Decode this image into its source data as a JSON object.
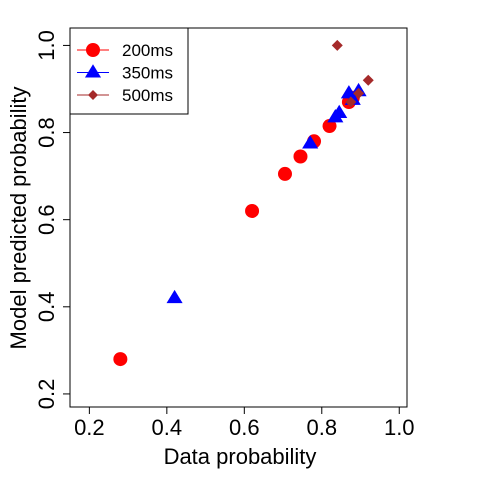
{
  "chart_data": {
    "type": "scatter",
    "title": "",
    "xlabel": "Data probability",
    "ylabel": "Model predicted probability",
    "xlim": [
      0.15,
      1.02
    ],
    "ylim": [
      0.17,
      1.04
    ],
    "xticks": [
      0.2,
      0.4,
      0.6,
      0.8,
      1.0
    ],
    "xtick_labels": [
      "0.2",
      "0.4",
      "0.6",
      "0.8",
      "1.0"
    ],
    "yticks": [
      0.2,
      0.4,
      0.6,
      0.8,
      1.0
    ],
    "ytick_labels": [
      "0.2",
      "0.4",
      "0.6",
      "0.8",
      "1.0"
    ],
    "grid": false,
    "legend_position": "top-left",
    "series": [
      {
        "name": "200ms",
        "color": "#ff0000",
        "marker": "circle",
        "points": [
          {
            "x": 0.28,
            "y": 0.28
          },
          {
            "x": 0.62,
            "y": 0.62
          },
          {
            "x": 0.705,
            "y": 0.705
          },
          {
            "x": 0.745,
            "y": 0.745
          },
          {
            "x": 0.78,
            "y": 0.78
          },
          {
            "x": 0.82,
            "y": 0.815
          },
          {
            "x": 0.87,
            "y": 0.87
          },
          {
            "x": 0.88,
            "y": 0.88
          }
        ]
      },
      {
        "name": "350ms",
        "color": "#0000ff",
        "marker": "triangle",
        "points": [
          {
            "x": 0.42,
            "y": 0.42
          },
          {
            "x": 0.77,
            "y": 0.775
          },
          {
            "x": 0.835,
            "y": 0.835
          },
          {
            "x": 0.845,
            "y": 0.845
          },
          {
            "x": 0.87,
            "y": 0.89
          },
          {
            "x": 0.88,
            "y": 0.875
          },
          {
            "x": 0.895,
            "y": 0.895
          }
        ]
      },
      {
        "name": "500ms",
        "color": "#a52a2a",
        "marker": "diamond",
        "points": [
          {
            "x": 0.84,
            "y": 1.0
          },
          {
            "x": 0.875,
            "y": 0.87
          },
          {
            "x": 0.895,
            "y": 0.89
          },
          {
            "x": 0.92,
            "y": 0.92
          }
        ]
      }
    ]
  }
}
